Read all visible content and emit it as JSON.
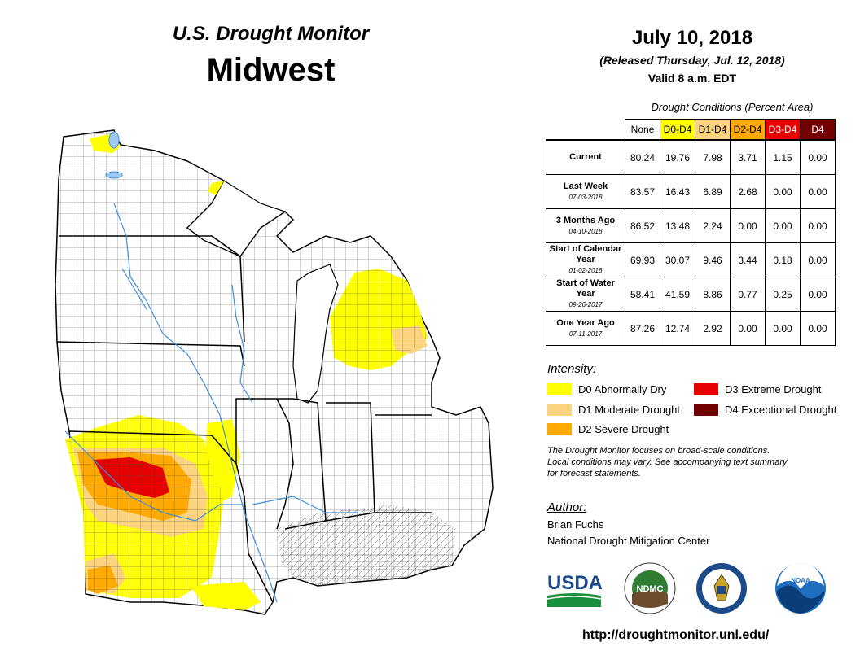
{
  "header": {
    "monitor_title": "U.S. Drought Monitor",
    "region": "Midwest",
    "date": "July 10, 2018",
    "released": "(Released Thursday, Jul. 12, 2018)",
    "valid": "Valid 8 a.m. EDT"
  },
  "stats_table": {
    "caption": "Drought Conditions (Percent Area)",
    "columns": [
      "None",
      "D0-D4",
      "D1-D4",
      "D2-D4",
      "D3-D4",
      "D4"
    ],
    "column_colors": [
      "#ffffff",
      "#ffff00",
      "#fcd37f",
      "#ffaa00",
      "#e60000",
      "#730000"
    ],
    "rows": [
      {
        "label": "Current",
        "date": "",
        "values": [
          "80.24",
          "19.76",
          "7.98",
          "3.71",
          "1.15",
          "0.00"
        ]
      },
      {
        "label": "Last Week",
        "date": "07-03-2018",
        "values": [
          "83.57",
          "16.43",
          "6.89",
          "2.68",
          "0.00",
          "0.00"
        ]
      },
      {
        "label": "3 Months Ago",
        "date": "04-10-2018",
        "values": [
          "86.52",
          "13.48",
          "2.24",
          "0.00",
          "0.00",
          "0.00"
        ]
      },
      {
        "label": "Start of Calendar Year",
        "date": "01-02-2018",
        "values": [
          "69.93",
          "30.07",
          "9.46",
          "3.44",
          "0.18",
          "0.00"
        ]
      },
      {
        "label": "Start of Water Year",
        "date": "09-26-2017",
        "values": [
          "58.41",
          "41.59",
          "8.86",
          "0.77",
          "0.25",
          "0.00"
        ]
      },
      {
        "label": "One Year Ago",
        "date": "07-11-2017",
        "values": [
          "87.26",
          "12.74",
          "2.92",
          "0.00",
          "0.00",
          "0.00"
        ]
      }
    ]
  },
  "legend": {
    "title": "Intensity:",
    "items": [
      {
        "label": "D0 Abnormally Dry",
        "color": "#ffff00"
      },
      {
        "label": "D1 Moderate Drought",
        "color": "#fcd37f"
      },
      {
        "label": "D2 Severe Drought",
        "color": "#ffaa00"
      },
      {
        "label": "D3 Extreme Drought",
        "color": "#e60000"
      },
      {
        "label": "D4 Exceptional Drought",
        "color": "#730000"
      }
    ]
  },
  "disclaimer": {
    "line1": "The Drought Monitor focuses on broad-scale conditions.",
    "line2": "Local conditions may vary. See accompanying text summary",
    "line3": "for forecast statements."
  },
  "author": {
    "title": "Author:",
    "name": "Brian Fuchs",
    "org": "National Drought Mitigation Center"
  },
  "logos": {
    "usda": "USDA",
    "ndmc": "NDMC",
    "noaa": "NOAA"
  },
  "url": "http://droughtmonitor.unl.edu/"
}
